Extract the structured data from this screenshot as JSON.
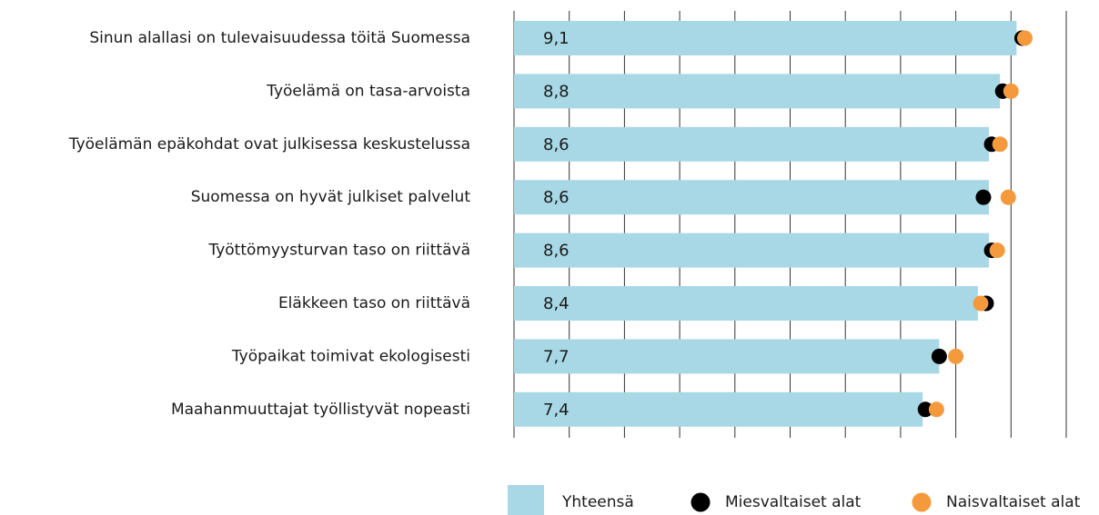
{
  "chart_data": {
    "type": "bar_dot",
    "categories": [
      "Sinun alallasi on tulevaisuudessa töitä Suomessa",
      "Työelämä on tasa-arvoista",
      "Työelämän epäkohdat ovat julkisessa keskustelussa",
      "Suomessa on hyvät julkiset palvelut",
      "Työttömyysturvan taso on riittävä",
      "Eläkkeen taso on riittävä",
      "Työpaikat toimivat ekologisesti",
      "Maahanmuuttajat työllistyvät nopeasti"
    ],
    "series": [
      {
        "name": "Yhteensä",
        "color": "#a8d8e6",
        "values": [
          9.1,
          8.8,
          8.6,
          8.6,
          8.6,
          8.4,
          7.7,
          7.4
        ],
        "value_labels": [
          "9,1",
          "8,8",
          "8,6",
          "8,6",
          "8,6",
          "8,4",
          "7,7",
          "7,4"
        ]
      },
      {
        "name": "Miesvaltaiset alat",
        "color": "#000000",
        "values": [
          9.2,
          8.85,
          8.65,
          8.5,
          8.65,
          8.55,
          7.7,
          7.45
        ]
      },
      {
        "name": "Naisvaltaiset alat",
        "color": "#f49a3c",
        "values": [
          9.25,
          9.0,
          8.8,
          8.95,
          8.75,
          8.45,
          8.0,
          7.65
        ]
      }
    ],
    "xlim": [
      0,
      10
    ],
    "xticks": [
      0,
      1,
      2,
      3,
      4,
      5,
      6,
      7,
      8,
      9,
      10
    ],
    "grid": true
  }
}
